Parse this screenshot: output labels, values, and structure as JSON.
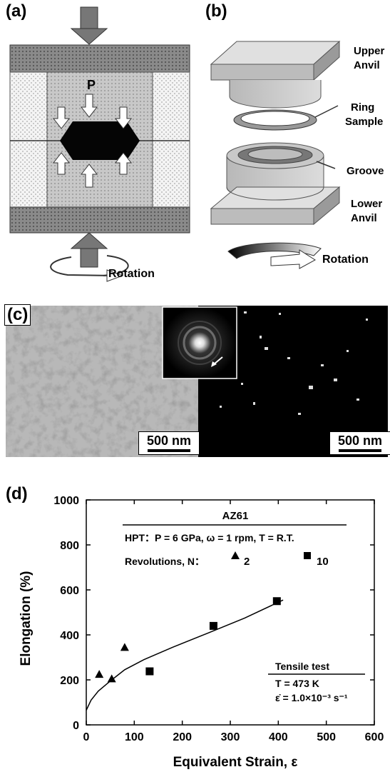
{
  "panel_a": {
    "label": "(a)",
    "pressure": "P",
    "rotation": "Rotation"
  },
  "panel_b": {
    "label": "(b)",
    "upper_anvil_1": "Upper",
    "upper_anvil_2": "Anvil",
    "ring_1": "Ring",
    "ring_2": "Sample",
    "groove": "Groove",
    "lower_anvil_1": "Lower",
    "lower_anvil_2": "Anvil",
    "rotation": "Rotation"
  },
  "panel_c": {
    "label": "(c)",
    "scale_left": "500 nm",
    "scale_right": "500 nm"
  },
  "panel_d": {
    "label": "(d)",
    "chart_data": {
      "type": "scatter",
      "xlabel": "Equivalent Strain, ε",
      "ylabel": "Elongation (%)",
      "xlim": [
        0,
        600
      ],
      "ylim": [
        0,
        1000
      ],
      "xticks": [
        0,
        100,
        200,
        300,
        400,
        500,
        600
      ],
      "yticks": [
        0,
        200,
        400,
        600,
        800,
        1000
      ],
      "legend_title": "AZ61",
      "condition": "HPT：P = 6 GPa, ω = 1 rpm, T = R.T.",
      "legend_prefix": "Revolutions, N：",
      "series": [
        {
          "name": "2",
          "marker": "triangle",
          "x": [
            27,
            53,
            80
          ],
          "y": [
            225,
            205,
            345
          ]
        },
        {
          "name": "10",
          "marker": "square",
          "x": [
            132,
            265,
            397
          ],
          "y": [
            238,
            440,
            550
          ]
        }
      ],
      "fit_curve": {
        "x": [
          0,
          10,
          25,
          50,
          80,
          120,
          180,
          250,
          330,
          410
        ],
        "y": [
          65,
          110,
          150,
          195,
          245,
          290,
          345,
          405,
          475,
          555
        ]
      },
      "test_title": "Tensile test",
      "test_temp": "T = 473 K",
      "test_rate": "ε̇ = 1.0×10⁻³ s⁻¹"
    }
  }
}
